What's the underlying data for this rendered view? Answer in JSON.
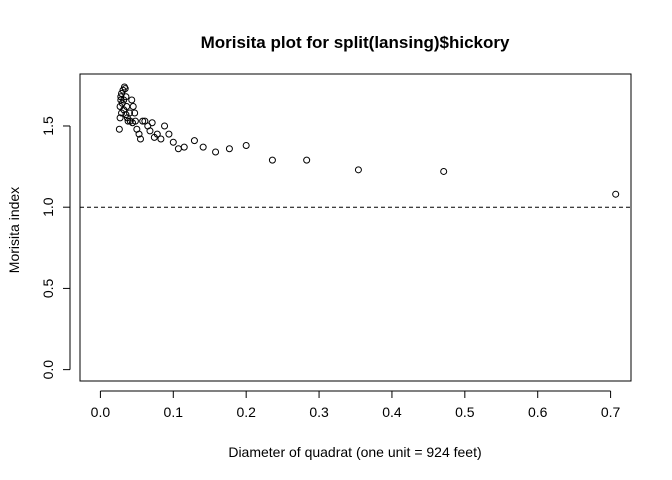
{
  "chart_data": {
    "type": "scatter",
    "title": "Morisita plot for split(lansing)$hickory",
    "xlabel": "Diameter of quadrat (one unit = 924 feet)",
    "ylabel": "Morisita index",
    "xlim": [
      -0.028,
      0.728
    ],
    "ylim": [
      -0.07,
      1.82
    ],
    "xticks": [
      0.0,
      0.1,
      0.2,
      0.3,
      0.4,
      0.5,
      0.6,
      0.7
    ],
    "xtick_labels": [
      "0.0",
      "0.1",
      "0.2",
      "0.3",
      "0.4",
      "0.5",
      "0.6",
      "0.7"
    ],
    "yticks": [
      0.0,
      0.5,
      1.0,
      1.5
    ],
    "ytick_labels": [
      "0.0",
      "0.5",
      "1.0",
      "1.5"
    ],
    "reference_line": {
      "y": 1.0,
      "style": "dashed"
    },
    "grid": false,
    "legend": "none",
    "marker": "open-circle",
    "colors": {
      "points": "#000000",
      "axes": "#000000"
    },
    "points": [
      [
        0.026,
        1.48
      ],
      [
        0.027,
        1.55
      ],
      [
        0.027,
        1.62
      ],
      [
        0.028,
        1.66
      ],
      [
        0.028,
        1.68
      ],
      [
        0.029,
        1.58
      ],
      [
        0.029,
        1.7
      ],
      [
        0.03,
        1.64
      ],
      [
        0.031,
        1.72
      ],
      [
        0.032,
        1.66
      ],
      [
        0.032,
        1.6
      ],
      [
        0.033,
        1.74
      ],
      [
        0.034,
        1.73
      ],
      [
        0.035,
        1.68
      ],
      [
        0.035,
        1.57
      ],
      [
        0.036,
        1.62
      ],
      [
        0.037,
        1.55
      ],
      [
        0.038,
        1.53
      ],
      [
        0.04,
        1.58
      ],
      [
        0.041,
        1.53
      ],
      [
        0.043,
        1.66
      ],
      [
        0.044,
        1.52
      ],
      [
        0.045,
        1.62
      ],
      [
        0.047,
        1.58
      ],
      [
        0.048,
        1.53
      ],
      [
        0.05,
        1.48
      ],
      [
        0.053,
        1.45
      ],
      [
        0.055,
        1.42
      ],
      [
        0.058,
        1.53
      ],
      [
        0.061,
        1.53
      ],
      [
        0.065,
        1.5
      ],
      [
        0.068,
        1.47
      ],
      [
        0.071,
        1.52
      ],
      [
        0.074,
        1.43
      ],
      [
        0.078,
        1.45
      ],
      [
        0.083,
        1.42
      ],
      [
        0.088,
        1.5
      ],
      [
        0.094,
        1.45
      ],
      [
        0.1,
        1.4
      ],
      [
        0.107,
        1.36
      ],
      [
        0.115,
        1.37
      ],
      [
        0.129,
        1.41
      ],
      [
        0.141,
        1.37
      ],
      [
        0.158,
        1.34
      ],
      [
        0.177,
        1.36
      ],
      [
        0.2,
        1.38
      ],
      [
        0.236,
        1.29
      ],
      [
        0.283,
        1.29
      ],
      [
        0.354,
        1.23
      ],
      [
        0.471,
        1.22
      ],
      [
        0.707,
        1.08
      ]
    ]
  }
}
